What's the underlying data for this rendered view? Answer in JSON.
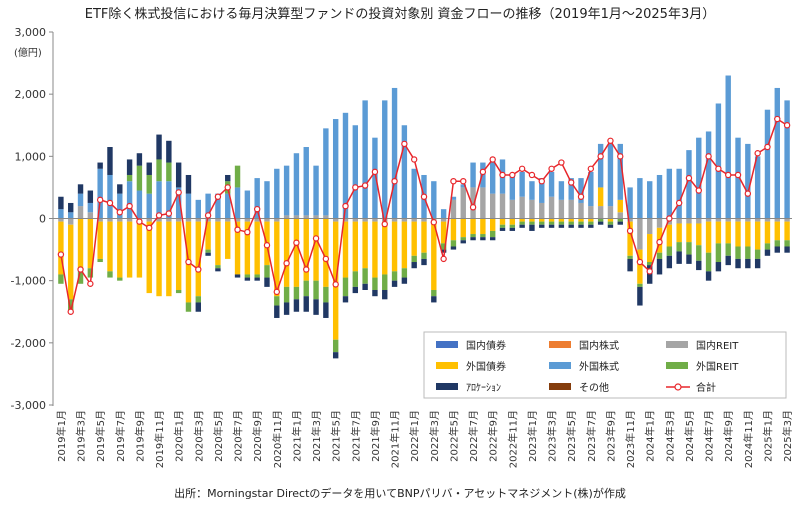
{
  "chart_data": {
    "type": "bar",
    "stacked": true,
    "title": "ETF除く株式投信における毎月決算型ファンドの投資対象別 資金フローの推移（2019年1月～2025年3月）",
    "y_unit": "(億円)",
    "ylim": [
      -3000,
      3000
    ],
    "yticks": [
      3000,
      2000,
      1000,
      0,
      -1000,
      -2000,
      -3000
    ],
    "ytick_labels": [
      "3,000",
      "2,000",
      "1,000",
      "0",
      "-1,000",
      "-2,000",
      "-3,000"
    ],
    "grid": false,
    "legend_position": "bottom-right-inside",
    "source": "出所：Morningstar Directのデータを用いてBNPパリバ・アセットマネジメント(株)が作成",
    "categories": [
      "2019年1月",
      "2019年2月",
      "2019年3月",
      "2019年4月",
      "2019年5月",
      "2019年6月",
      "2019年7月",
      "2019年8月",
      "2019年9月",
      "2019年10月",
      "2019年11月",
      "2019年12月",
      "2020年1月",
      "2020年2月",
      "2020年3月",
      "2020年4月",
      "2020年5月",
      "2020年6月",
      "2020年7月",
      "2020年8月",
      "2020年9月",
      "2020年10月",
      "2020年11月",
      "2020年12月",
      "2021年1月",
      "2021年2月",
      "2021年3月",
      "2021年4月",
      "2021年5月",
      "2021年6月",
      "2021年7月",
      "2021年8月",
      "2021年9月",
      "2021年10月",
      "2021年11月",
      "2021年12月",
      "2022年1月",
      "2022年2月",
      "2022年3月",
      "2022年4月",
      "2022年5月",
      "2022年6月",
      "2022年7月",
      "2022年8月",
      "2022年9月",
      "2022年10月",
      "2022年11月",
      "2022年12月",
      "2023年1月",
      "2023年2月",
      "2023年3月",
      "2023年4月",
      "2023年5月",
      "2023年6月",
      "2023年7月",
      "2023年8月",
      "2023年9月",
      "2023年10月",
      "2023年11月",
      "2023年12月",
      "2024年1月",
      "2024年2月",
      "2024年3月",
      "2024年4月",
      "2024年5月",
      "2024年6月",
      "2024年7月",
      "2024年8月",
      "2024年9月",
      "2024年10月",
      "2024年11月",
      "2024年12月",
      "2025年1月",
      "2025年2月",
      "2025年3月"
    ],
    "x_tick_labels": [
      "2019年1月",
      "2019年3月",
      "2019年5月",
      "2019年7月",
      "2019年9月",
      "2019年11月",
      "2020年1月",
      "2020年3月",
      "2020年5月",
      "2020年7月",
      "2020年9月",
      "2020年11月",
      "2021年1月",
      "2021年3月",
      "2021年5月",
      "2021年7月",
      "2021年9月",
      "2021年11月",
      "2022年1月",
      "2022年3月",
      "2022年5月",
      "2022年7月",
      "2022年9月",
      "2022年11月",
      "2023年1月",
      "2023年3月",
      "2023年5月",
      "2023年7月",
      "2023年9月",
      "2023年11月",
      "2024年1月",
      "2024年3月",
      "2024年5月",
      "2024年7月",
      "2024年9月",
      "2024年11月",
      "2025年1月",
      "2025年3月"
    ],
    "series": [
      {
        "name": "国内債券",
        "color": "#4472c4",
        "values": [
          0,
          0,
          0,
          0,
          0,
          0,
          0,
          0,
          0,
          0,
          0,
          0,
          0,
          0,
          0,
          0,
          0,
          0,
          0,
          0,
          0,
          0,
          0,
          0,
          0,
          0,
          0,
          0,
          0,
          0,
          0,
          0,
          0,
          0,
          0,
          0,
          0,
          0,
          0,
          0,
          0,
          0,
          0,
          0,
          0,
          0,
          0,
          0,
          0,
          0,
          0,
          0,
          0,
          0,
          0,
          0,
          0,
          0,
          0,
          0,
          0,
          0,
          0,
          0,
          0,
          0,
          0,
          0,
          0,
          0,
          0,
          0,
          0,
          0,
          0
        ]
      },
      {
        "name": "国内株式",
        "color": "#ed7d31",
        "values": [
          0,
          0,
          0,
          0,
          0,
          0,
          0,
          0,
          0,
          0,
          0,
          0,
          0,
          0,
          0,
          0,
          0,
          0,
          0,
          0,
          0,
          0,
          0,
          0,
          0,
          0,
          0,
          0,
          0,
          0,
          0,
          0,
          0,
          0,
          0,
          0,
          0,
          0,
          0,
          0,
          0,
          0,
          0,
          0,
          0,
          0,
          0,
          0,
          0,
          0,
          0,
          0,
          0,
          0,
          0,
          0,
          0,
          0,
          0,
          0,
          0,
          0,
          0,
          0,
          0,
          0,
          0,
          0,
          0,
          0,
          0,
          0,
          0,
          0,
          0
        ]
      },
      {
        "name": "国内REIT",
        "color": "#a5a5a5",
        "values": [
          -50,
          -100,
          200,
          100,
          -50,
          -50,
          -50,
          -50,
          -50,
          -50,
          -50,
          -50,
          -50,
          -50,
          -50,
          -50,
          -50,
          -50,
          -50,
          -50,
          -50,
          -50,
          -50,
          50,
          50,
          50,
          50,
          50,
          -50,
          -50,
          -50,
          -50,
          -50,
          -50,
          -50,
          -50,
          -50,
          -50,
          -50,
          -50,
          300,
          500,
          500,
          500,
          400,
          400,
          300,
          350,
          300,
          250,
          350,
          300,
          300,
          250,
          200,
          200,
          200,
          100,
          -50,
          -500,
          -250,
          -150,
          -100,
          -80,
          -80,
          -80,
          -50,
          -50,
          -50,
          -50,
          -50,
          -50,
          -50,
          -50,
          -50
        ]
      },
      {
        "name": "外国債券",
        "color": "#ffc000",
        "values": [
          -850,
          -1200,
          -800,
          -800,
          -600,
          -800,
          -900,
          -900,
          -900,
          -1150,
          -1200,
          -1200,
          -1100,
          -1300,
          -1200,
          -450,
          -700,
          -600,
          -850,
          -850,
          -850,
          -700,
          -1200,
          -1100,
          -1100,
          -1000,
          -1000,
          -1100,
          -1900,
          -900,
          -800,
          -750,
          -900,
          -850,
          -800,
          -750,
          -550,
          -500,
          -1100,
          -350,
          -350,
          -300,
          -250,
          -250,
          -200,
          -100,
          -100,
          -50,
          -50,
          -50,
          -50,
          -50,
          -50,
          -50,
          -50,
          300,
          -50,
          200,
          -550,
          -550,
          -450,
          -400,
          -350,
          -300,
          -300,
          -350,
          -500,
          -350,
          -350,
          -400,
          -400,
          -450,
          -350,
          -300,
          -300
        ]
      },
      {
        "name": "外国株式",
        "color": "#5b9bd5",
        "values": [
          150,
          100,
          200,
          150,
          800,
          700,
          400,
          600,
          450,
          400,
          600,
          600,
          500,
          400,
          300,
          400,
          400,
          400,
          500,
          450,
          650,
          600,
          800,
          800,
          1000,
          1100,
          800,
          1400,
          1600,
          1700,
          1500,
          1900,
          1300,
          1900,
          2100,
          1500,
          800,
          700,
          600,
          150,
          50,
          50,
          400,
          400,
          550,
          550,
          400,
          400,
          300,
          400,
          400,
          300,
          350,
          400,
          550,
          700,
          1000,
          900,
          500,
          650,
          600,
          700,
          800,
          800,
          1100,
          1300,
          1400,
          1850,
          2300,
          1300,
          1200,
          1000,
          1750,
          2100,
          1900
        ]
      },
      {
        "name": "外国REIT",
        "color": "#70ad47",
        "values": [
          -150,
          -200,
          -250,
          -150,
          -50,
          -100,
          -50,
          100,
          400,
          300,
          350,
          300,
          -50,
          -150,
          -100,
          -50,
          -50,
          200,
          350,
          -50,
          -50,
          -200,
          -150,
          -250,
          -200,
          -250,
          -300,
          -250,
          -200,
          -300,
          -250,
          -250,
          -200,
          -250,
          -150,
          -150,
          -100,
          -100,
          -100,
          -100,
          -100,
          -50,
          -50,
          -50,
          -100,
          -50,
          -50,
          -50,
          -50,
          -50,
          -50,
          -50,
          -50,
          -50,
          -50,
          -50,
          -50,
          -50,
          -50,
          -50,
          -50,
          -100,
          -150,
          -150,
          -200,
          -250,
          -300,
          -300,
          -200,
          -200,
          -200,
          -150,
          -100,
          -100,
          -100
        ]
      },
      {
        "name": "ｱﾛｹｰｼｮﾝ",
        "color": "#203864",
        "values": [
          200,
          150,
          150,
          200,
          100,
          450,
          150,
          250,
          200,
          200,
          400,
          350,
          400,
          300,
          -150,
          -50,
          -50,
          100,
          -50,
          -50,
          -50,
          -150,
          -200,
          -200,
          -200,
          -250,
          -250,
          -250,
          -100,
          -100,
          -100,
          -100,
          -100,
          -150,
          -100,
          -100,
          -100,
          -100,
          -100,
          -50,
          -50,
          -50,
          -50,
          -50,
          -50,
          -50,
          -50,
          -50,
          -100,
          -50,
          -50,
          -50,
          -50,
          -50,
          -50,
          -50,
          -50,
          -50,
          -200,
          -300,
          -300,
          -250,
          -200,
          -200,
          -150,
          -150,
          -150,
          -150,
          -150,
          -150,
          -150,
          -150,
          -100,
          -100,
          -100
        ]
      },
      {
        "name": "その他",
        "color": "#843c0c",
        "values": [
          0,
          0,
          0,
          0,
          0,
          0,
          0,
          0,
          0,
          0,
          0,
          0,
          0,
          0,
          0,
          0,
          0,
          0,
          0,
          0,
          0,
          0,
          0,
          0,
          0,
          0,
          0,
          0,
          0,
          0,
          0,
          0,
          0,
          0,
          0,
          0,
          0,
          0,
          0,
          0,
          0,
          0,
          0,
          0,
          0,
          0,
          0,
          0,
          0,
          0,
          0,
          0,
          0,
          0,
          0,
          0,
          0,
          0,
          0,
          0,
          0,
          0,
          0,
          0,
          0,
          0,
          0,
          0,
          0,
          0,
          0,
          0,
          0,
          0,
          0
        ]
      }
    ],
    "total": {
      "name": "合計",
      "color": "#e8262b",
      "values": [
        -580,
        -1500,
        -820,
        -1050,
        300,
        250,
        100,
        200,
        -50,
        -150,
        50,
        80,
        420,
        -700,
        -820,
        50,
        350,
        500,
        -180,
        -220,
        150,
        -430,
        -1180,
        -720,
        -390,
        -820,
        -320,
        -650,
        -1060,
        200,
        500,
        530,
        750,
        -90,
        600,
        1200,
        950,
        350,
        -60,
        -650,
        600,
        600,
        180,
        750,
        950,
        700,
        700,
        800,
        700,
        600,
        800,
        900,
        580,
        350,
        800,
        1000,
        1250,
        1000,
        -200,
        -700,
        -850,
        -380,
        0,
        250,
        650,
        450,
        1000,
        800,
        700,
        700,
        400,
        1050,
        1150,
        1600,
        1500
      ]
    }
  }
}
